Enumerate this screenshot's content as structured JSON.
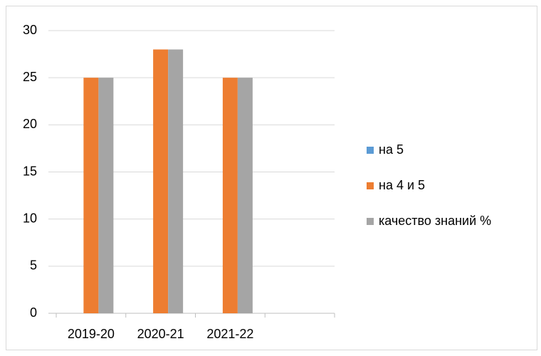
{
  "chart_data": {
    "type": "bar",
    "categories": [
      "2019-20",
      "2020-21",
      "2021-22",
      null
    ],
    "series": [
      {
        "name": "на 5",
        "color": "#5b9bd5",
        "values": [
          0,
          0,
          0,
          null
        ]
      },
      {
        "name": "на 4 и 5",
        "color": "#ed7d31",
        "values": [
          25,
          28,
          25,
          null
        ]
      },
      {
        "name": "качество знаний %",
        "color": "#a5a5a5",
        "values": [
          25,
          28,
          25,
          null
        ]
      }
    ],
    "ylim": [
      0,
      30
    ],
    "yticks": [
      0,
      5,
      10,
      15,
      20,
      25,
      30
    ],
    "grid": true,
    "legend": "right"
  }
}
